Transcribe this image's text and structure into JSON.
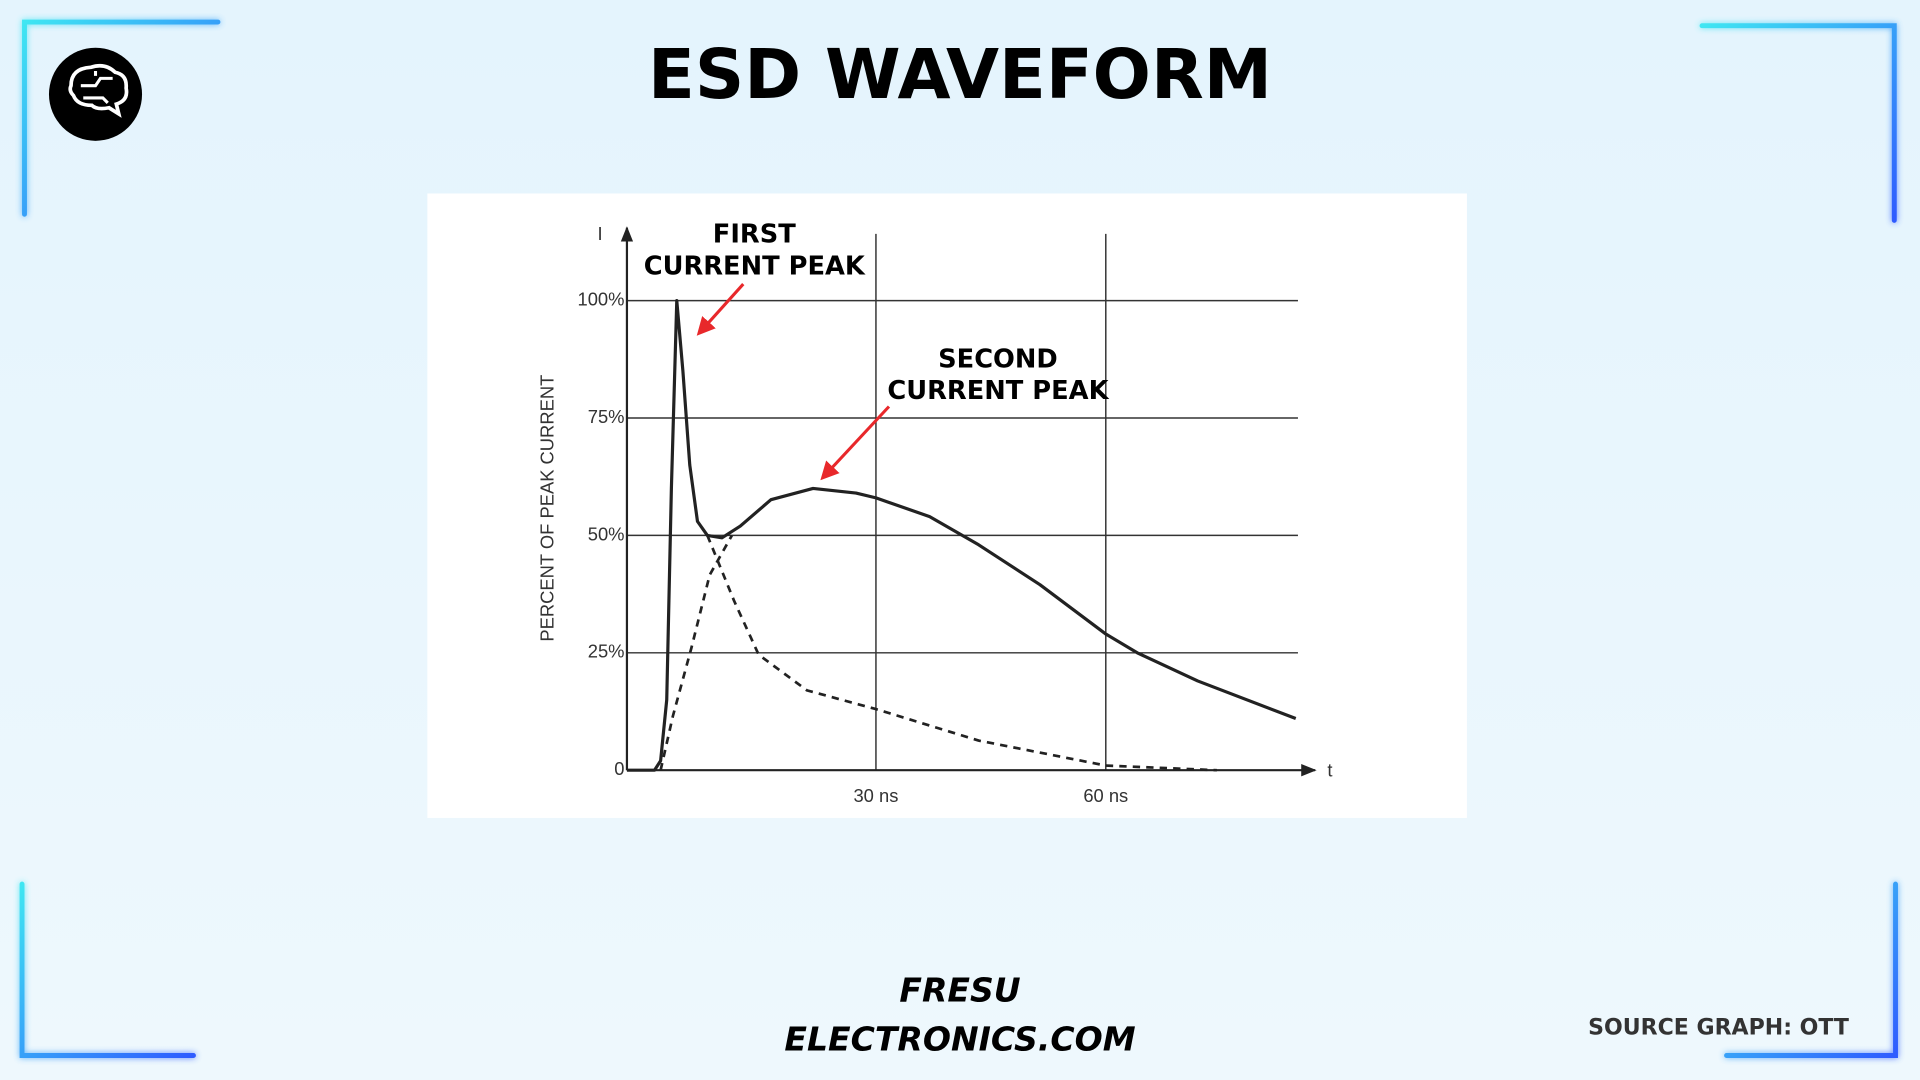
{
  "header": {
    "title": "ESD WAVEFORM"
  },
  "chart_data": {
    "type": "line",
    "ylabel": "PERCENT OF PEAK CURRENT",
    "y_axis_symbol": "I",
    "x_axis_symbol": "t",
    "xlim": [
      -2.5,
      87
    ],
    "ylim": [
      0,
      115
    ],
    "xticks": [
      {
        "value": 30,
        "label": "30 ns"
      },
      {
        "value": 60,
        "label": "60 ns"
      }
    ],
    "yticks": [
      0,
      {
        "value": 25,
        "label": "25%"
      },
      {
        "value": 50,
        "label": "50%"
      },
      {
        "value": 75,
        "label": "75%"
      },
      {
        "value": 100,
        "label": "100%"
      }
    ],
    "grid": true,
    "series": [
      {
        "color": "#222222",
        "dash": false,
        "x": [
          -2.5,
          1.1,
          1.9,
          2.7,
          3.3,
          4.0,
          4.8,
          5.7,
          6.7,
          8.0,
          9.9,
          12.3,
          16.3,
          21.8,
          27.4,
          30,
          37,
          43.4,
          51.4,
          60,
          64.1,
          72,
          84.8
        ],
        "values": [
          0,
          0,
          2,
          15,
          60,
          100,
          85,
          65,
          53,
          50,
          49.5,
          52,
          57.6,
          60,
          59,
          58,
          54,
          48,
          39.5,
          29,
          25,
          19,
          11
        ]
      },
      {
        "color": "#222222",
        "dash": true,
        "x": [
          8.0,
          11.5,
          14.7,
          21,
          30,
          43.4,
          60,
          74.5
        ],
        "values": [
          50,
          36,
          24.6,
          17,
          13,
          6.3,
          1,
          0
        ]
      },
      {
        "color": "#222222",
        "dash": true,
        "x": [
          1.9,
          3.5,
          5.9,
          8.3,
          11.2
        ],
        "values": [
          0,
          11.5,
          26,
          41.6,
          50
        ]
      }
    ],
    "annotations": [
      {
        "lines": [
          "FIRST",
          "CURRENT PEAK"
        ],
        "color": "#e8282b"
      },
      {
        "lines": [
          "SECOND",
          "CURRENT PEAK"
        ],
        "color": "#e8282b"
      }
    ]
  },
  "footer": {
    "brand": [
      "FRESU",
      "ELECTRONICS.COM"
    ],
    "source": "SOURCE GRAPH: OTT"
  }
}
